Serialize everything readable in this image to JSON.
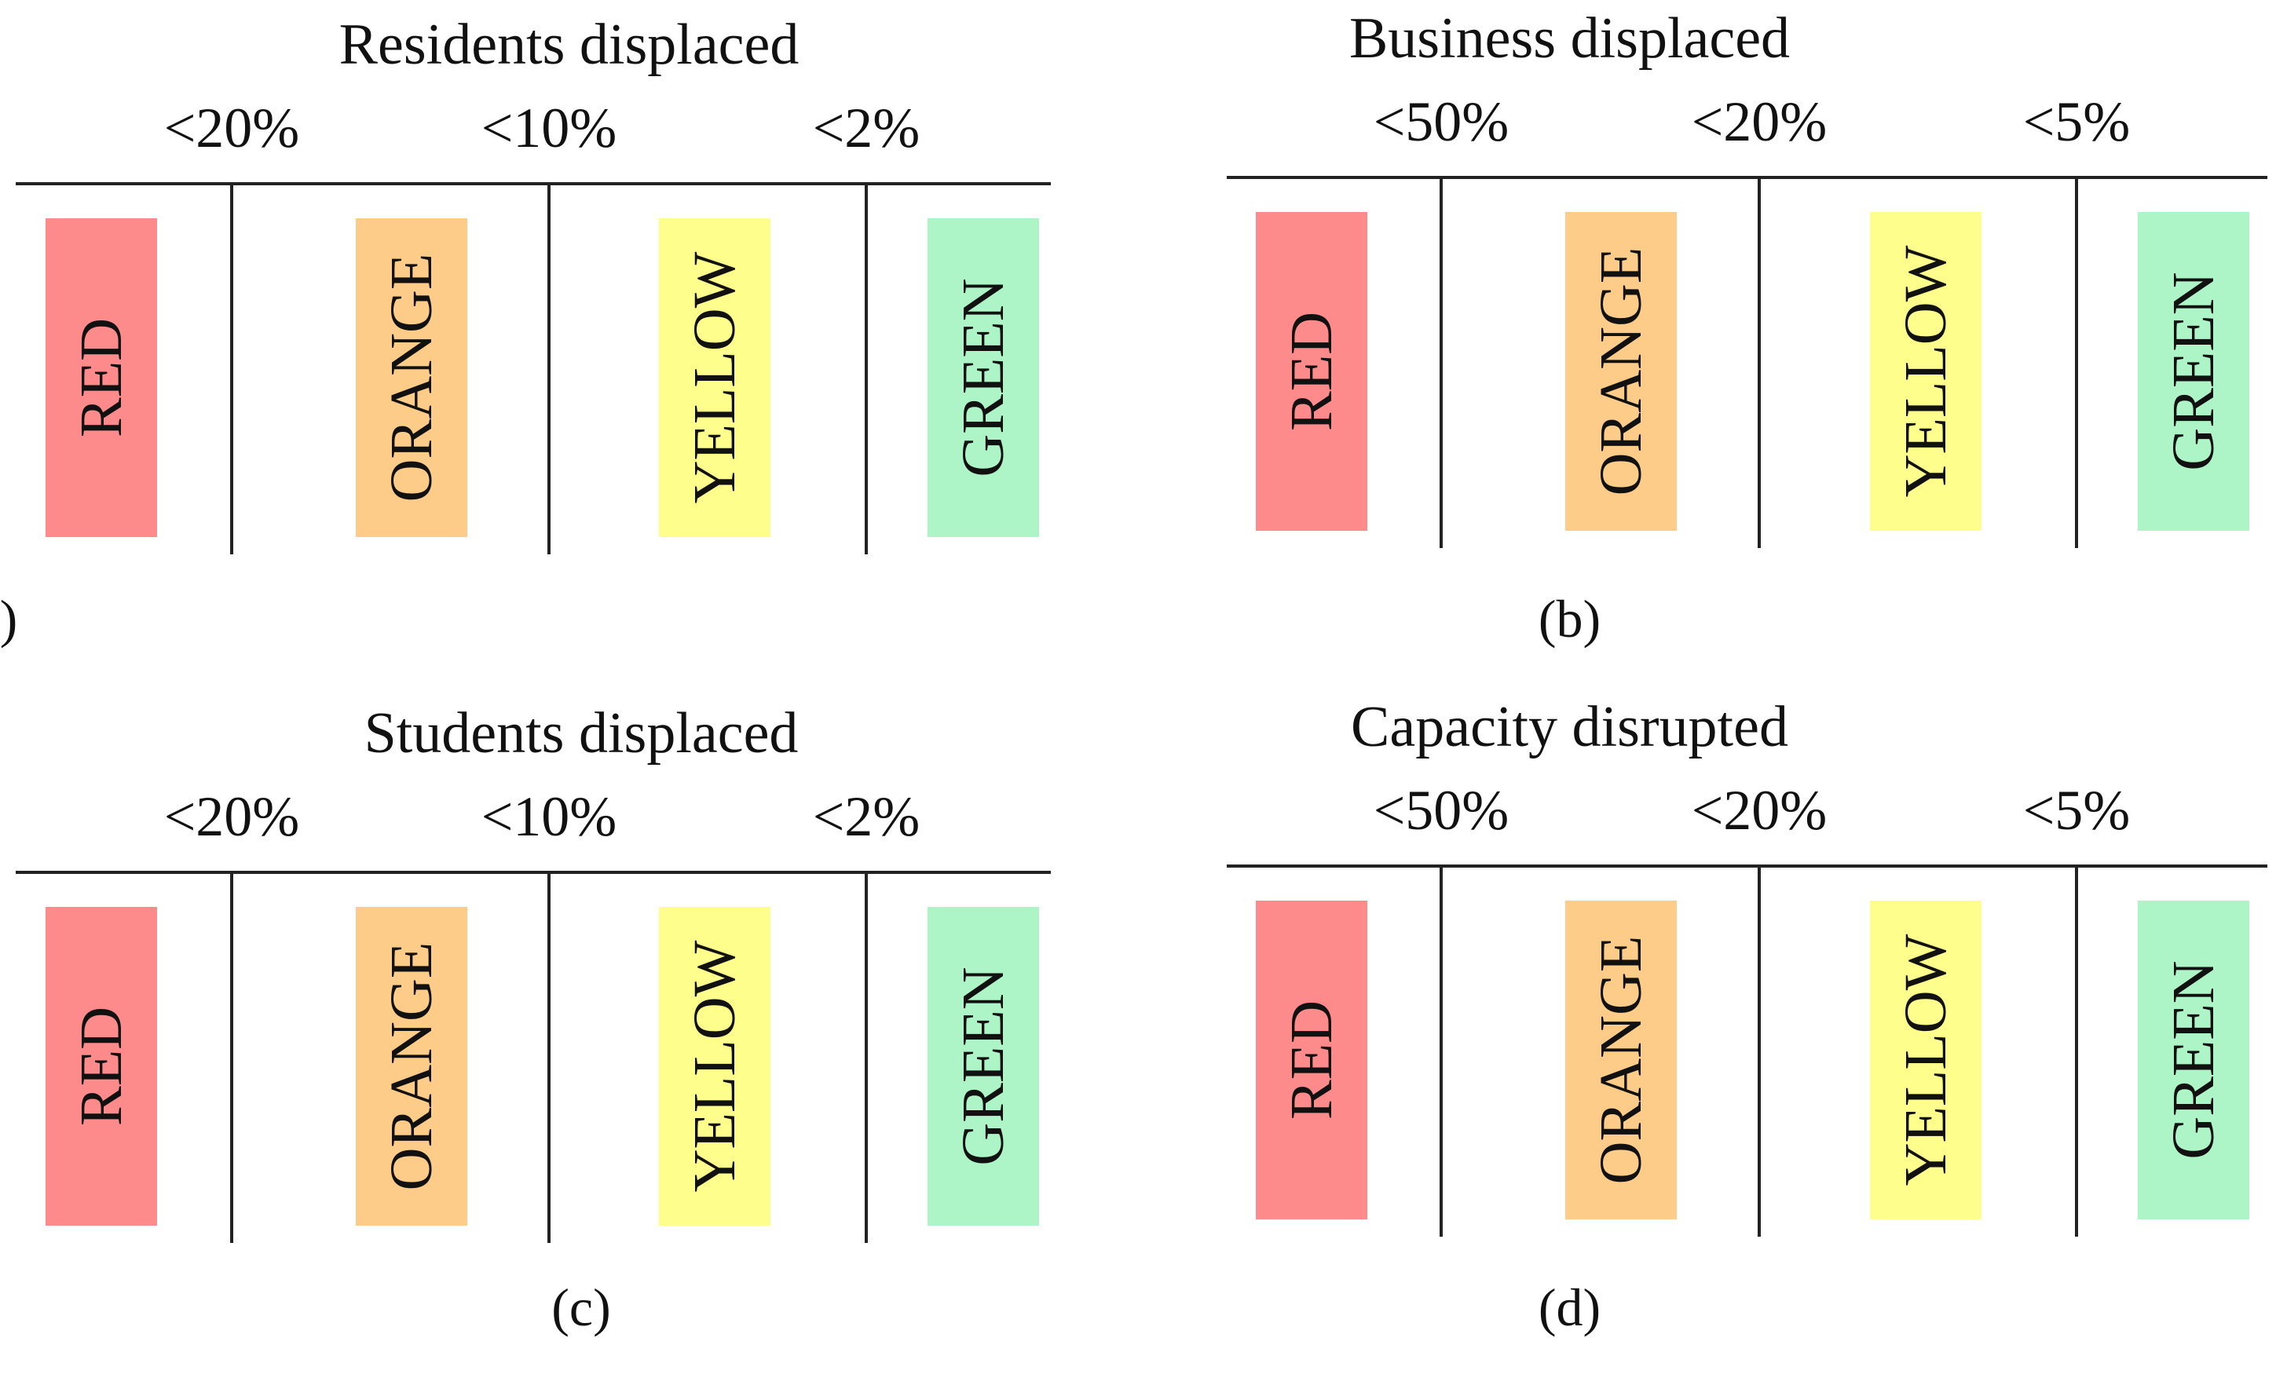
{
  "colors": {
    "red": "#fe8b8b",
    "orange": "#fccc88",
    "yellow": "#fefe8c",
    "green": "#adf5c7",
    "line": "#222222",
    "text": "#111111"
  },
  "panels": [
    {
      "title": "Residents displaced",
      "thresholds": [
        "<20%",
        "<10%",
        "<2%"
      ],
      "categories": [
        "RED",
        "ORANGE",
        "YELLOW",
        "GREEN"
      ],
      "caption": "(a)"
    },
    {
      "title": "Business displaced",
      "thresholds": [
        "<50%",
        "<20%",
        "<5%"
      ],
      "categories": [
        "RED",
        "ORANGE",
        "YELLOW",
        "GREEN"
      ],
      "caption": "(b)"
    },
    {
      "title": "Students displaced",
      "thresholds": [
        "<20%",
        "<10%",
        "<2%"
      ],
      "categories": [
        "RED",
        "ORANGE",
        "YELLOW",
        "GREEN"
      ],
      "caption": "(c)"
    },
    {
      "title": "Capacity disrupted",
      "thresholds": [
        "<50%",
        "<20%",
        "<5%"
      ],
      "categories": [
        "RED",
        "ORANGE",
        "YELLOW",
        "GREEN"
      ],
      "caption": "(d)"
    }
  ]
}
